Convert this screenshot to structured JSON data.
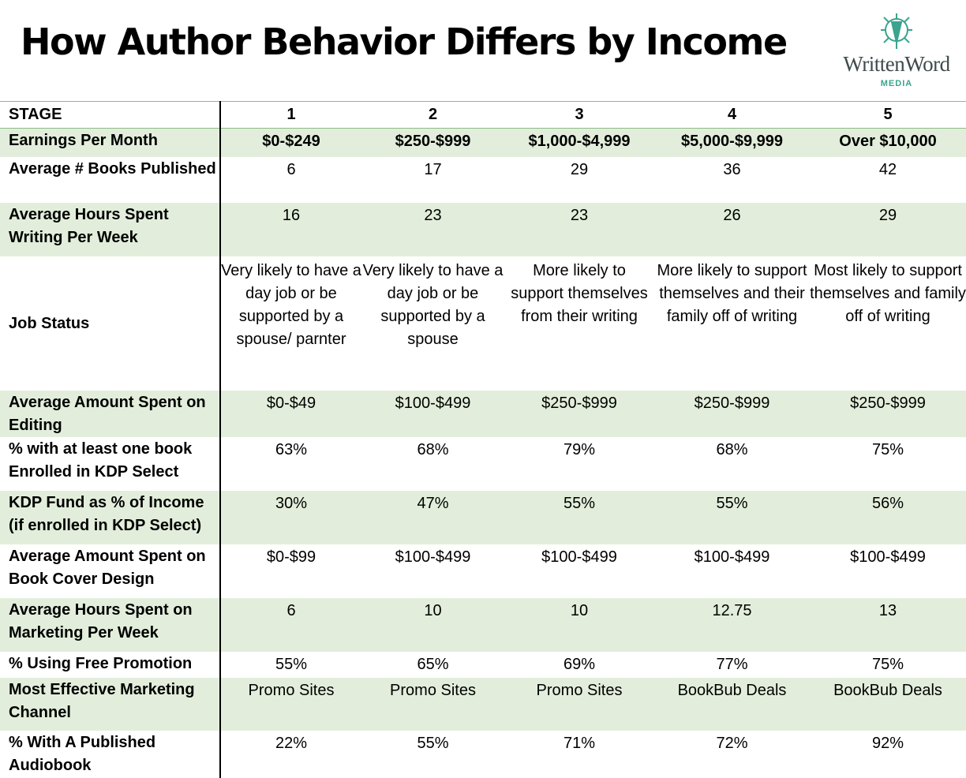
{
  "title": "How Author Behavior Differs by Income",
  "logo": {
    "name": "WrittenWord",
    "sub": "MEDIA",
    "color": "#3aa48e"
  },
  "colors": {
    "band": "#e2eedb",
    "rule": "#8dbb87"
  },
  "header": {
    "label": "STAGE",
    "stages": [
      "1",
      "2",
      "3",
      "4",
      "5"
    ]
  },
  "rows": [
    {
      "label": "Earnings Per Month",
      "values": [
        "$0-$249",
        "$250-$999",
        "$1,000-$4,999",
        "$5,000-$9,999",
        "Over $10,000"
      ]
    },
    {
      "label": "Average # Books Published",
      "values": [
        "6",
        "17",
        "29",
        "36",
        "42"
      ]
    },
    {
      "label": "Average Hours Spent Writing Per Week",
      "values": [
        "16",
        "23",
        "23",
        "26",
        "29"
      ]
    },
    {
      "label": "Job Status",
      "values": [
        "Very likely to have a day job or be supported by a spouse/ parnter",
        "Very likely to have a day job or be supported by a spouse",
        "More likely to support themselves from their writing",
        "More likely to support themselves and their family off of writing",
        "Most likely to support themselves and family off of writing"
      ]
    },
    {
      "label": "Average Amount Spent on Editing",
      "values": [
        "$0-$49",
        "$100-$499",
        "$250-$999",
        "$250-$999",
        "$250-$999"
      ]
    },
    {
      "label": "% with at least one book Enrolled in KDP Select",
      "values": [
        "63%",
        "68%",
        "79%",
        "68%",
        "75%"
      ]
    },
    {
      "label": "KDP Fund as % of Income (if enrolled in KDP Select)",
      "values": [
        "30%",
        "47%",
        "55%",
        "55%",
        "56%"
      ]
    },
    {
      "label": "Average Amount Spent on Book Cover Design",
      "values": [
        "$0-$99",
        "$100-$499",
        "$100-$499",
        "$100-$499",
        "$100-$499"
      ]
    },
    {
      "label": "Average Hours Spent on Marketing Per Week",
      "values": [
        "6",
        "10",
        "10",
        "12.75",
        "13"
      ]
    },
    {
      "label": "% Using Free Promotion",
      "values": [
        "55%",
        "65%",
        "69%",
        "77%",
        "75%"
      ]
    },
    {
      "label": "Most Effective Marketing Channel",
      "values": [
        "Promo Sites",
        "Promo Sites",
        "Promo Sites",
        "BookBub Deals",
        "BookBub Deals"
      ]
    },
    {
      "label": "% With A Published Audiobook",
      "values": [
        "22%",
        "55%",
        "71%",
        "72%",
        "92%"
      ]
    }
  ]
}
